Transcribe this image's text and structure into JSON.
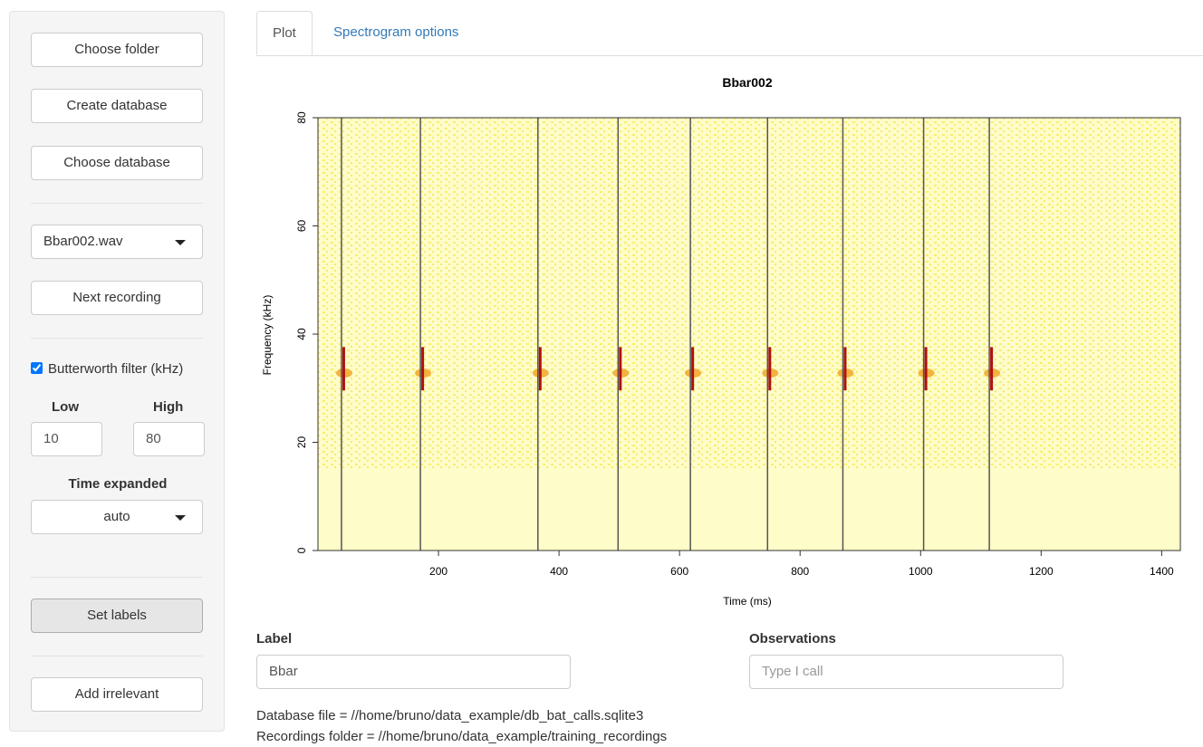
{
  "sidebar": {
    "choose_folder": "Choose folder",
    "create_database": "Create database",
    "choose_database": "Choose database",
    "recording": "Bbar002.wav",
    "next_recording": "Next recording",
    "filter_label": "Butterworth filter (kHz)",
    "filter_checked": true,
    "low_label": "Low",
    "high_label": "High",
    "low_value": "10",
    "high_value": "80",
    "time_expanded_label": "Time expanded",
    "time_expanded_value": "auto",
    "set_labels": "Set labels",
    "add_irrelevant": "Add irrelevant"
  },
  "tabs": [
    "Plot",
    "Spectrogram options"
  ],
  "chart_data": {
    "type": "spectrogram",
    "title": "Bbar002",
    "x_label": "Time (ms)",
    "y_label": "Frequency (kHz)",
    "xlim": [
      0,
      1431
    ],
    "xticks": [
      200,
      400,
      600,
      800,
      1000,
      1200,
      1400
    ],
    "ylim": [
      0,
      80
    ],
    "yticks": [
      0,
      20,
      40,
      60,
      80
    ],
    "call_boundaries": [
      39,
      170,
      365,
      498,
      618,
      746,
      871,
      1005,
      1114
    ],
    "background_color": "#fefcc8",
    "line_color": "#555555"
  },
  "form": {
    "label_title": "Label",
    "label_value": "Bbar",
    "observations_title": "Observations",
    "observations_placeholder": "Type I call"
  },
  "footer": {
    "database_file": "Database file = //home/bruno/data_example/db_bat_calls.sqlite3",
    "recordings_folder": "Recordings folder = //home/bruno/data_example/training_recordings"
  }
}
